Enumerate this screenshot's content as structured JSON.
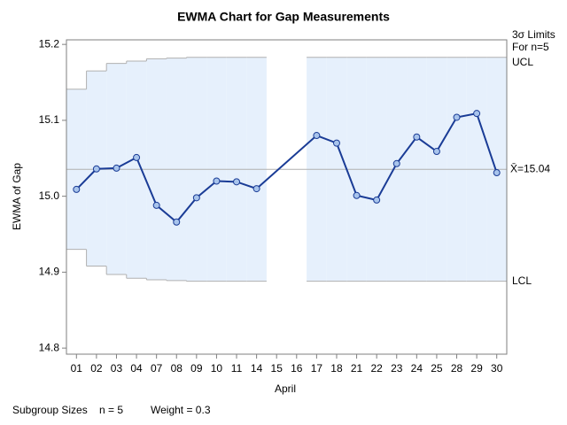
{
  "chart_data": {
    "type": "ewma",
    "title": "EWMA Chart for Gap Measurements",
    "x_label": "April",
    "y_label": "EWMA of Gap",
    "categories": [
      "01",
      "02",
      "03",
      "04",
      "07",
      "08",
      "09",
      "10",
      "11",
      "14",
      "15",
      "16",
      "17",
      "18",
      "21",
      "22",
      "23",
      "24",
      "25",
      "28",
      "29",
      "30"
    ],
    "series": [
      {
        "name": "EWMA",
        "color": "#1a3c96",
        "values": [
          15.009,
          15.036,
          15.037,
          15.051,
          14.988,
          14.966,
          14.998,
          15.02,
          15.019,
          15.01,
          null,
          null,
          15.08,
          15.07,
          15.001,
          14.995,
          15.043,
          15.078,
          15.059,
          15.104,
          15.109,
          15.031
        ]
      }
    ],
    "ucl": [
      15.141,
      15.165,
      15.175,
      15.178,
      15.181,
      15.182,
      15.183,
      15.183,
      15.183,
      15.183,
      null,
      null,
      15.183,
      15.183,
      15.183,
      15.183,
      15.183,
      15.183,
      15.183,
      15.183,
      15.183,
      15.183
    ],
    "lcl": [
      14.93,
      14.908,
      14.897,
      14.892,
      14.89,
      14.889,
      14.888,
      14.888,
      14.888,
      14.888,
      null,
      null,
      14.888,
      14.888,
      14.888,
      14.888,
      14.888,
      14.888,
      14.888,
      14.888,
      14.888,
      14.888
    ],
    "center": 15.0355,
    "center_label": "X̄=15.04",
    "limits_label": "3σ Limits",
    "n_label": "For n=5",
    "ucl_label": "UCL",
    "lcl_label": "LCL",
    "band_color": "#e6f0fc",
    "ylim": [
      14.792,
      15.206
    ],
    "yticks": [
      {
        "value": 14.8,
        "label": "14.8"
      },
      {
        "value": 14.9,
        "label": "14.9"
      },
      {
        "value": 15.0,
        "label": "15.0"
      },
      {
        "value": 15.1,
        "label": "15.1"
      },
      {
        "value": 15.2,
        "label": "15.2"
      }
    ],
    "footer": {
      "label": "Subgroup Sizes",
      "n": "n = 5",
      "weight": "Weight = 0.3"
    }
  }
}
